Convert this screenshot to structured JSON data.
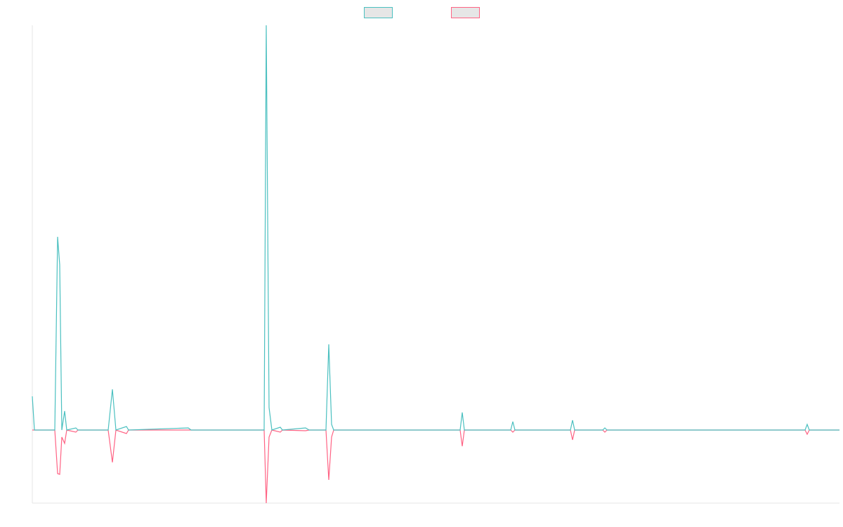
{
  "chart_data": {
    "type": "line",
    "x": [
      0,
      3,
      32,
      36,
      39,
      42,
      46,
      49,
      62,
      65,
      108,
      114,
      119,
      134,
      137,
      222,
      226,
      330,
      333,
      337,
      341,
      353,
      356,
      389,
      394,
      418,
      422,
      426,
      429,
      609,
      612,
      615,
      681,
      684,
      687,
      766,
      769,
      772,
      812,
      815,
      818,
      1100,
      1103,
      1106,
      1149
    ],
    "series": [
      {
        "color": "#ff6384",
        "values": [
          0,
          0,
          0,
          -62,
          -63,
          -10,
          -19,
          0,
          -3,
          0,
          0,
          -46,
          0,
          -5,
          0,
          0,
          0,
          0,
          -104,
          -10,
          0,
          -3,
          0,
          -1,
          0,
          0,
          -71,
          -10,
          0,
          0,
          -23,
          0,
          0,
          -3,
          0,
          0,
          -14,
          0,
          0,
          -3,
          0,
          0,
          -6,
          0,
          0
        ]
      },
      {
        "color": "#4bc0c0",
        "values": [
          48,
          0,
          0,
          275,
          235,
          0,
          27,
          0,
          3,
          0,
          0,
          58,
          0,
          5,
          0,
          3,
          0,
          0,
          576,
          32,
          0,
          4,
          0,
          3,
          0,
          0,
          122,
          8,
          0,
          0,
          25,
          0,
          0,
          12,
          0,
          0,
          14,
          0,
          0,
          3,
          0,
          0,
          8,
          0,
          0
        ]
      }
    ],
    "xlim": [
      0,
      1149
    ],
    "ylim": [
      -104,
      576
    ],
    "legend": "top"
  }
}
